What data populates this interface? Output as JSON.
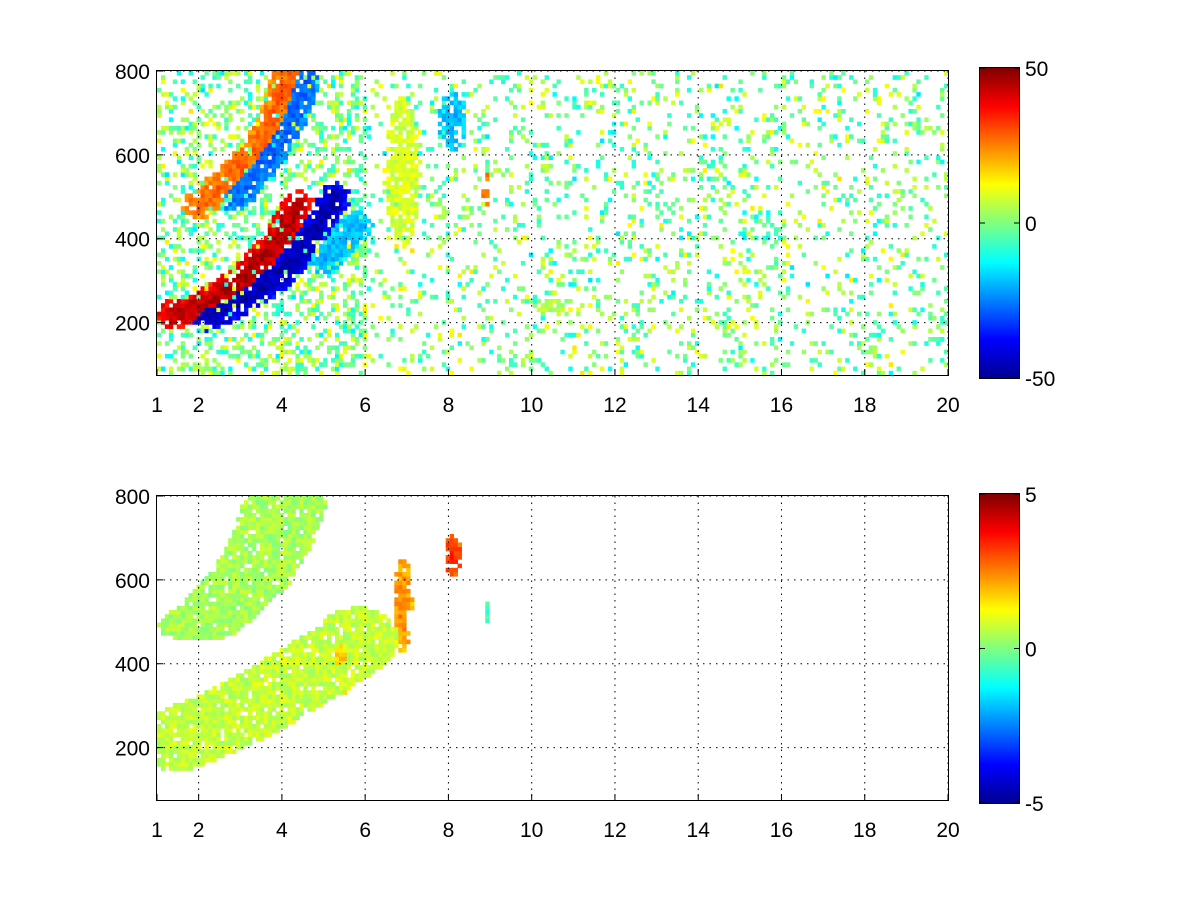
{
  "chart_data": [
    {
      "type": "heatmap",
      "title": "",
      "xlabel": "",
      "ylabel": "",
      "xlim": [
        1,
        20
      ],
      "ylim": [
        75,
        800
      ],
      "xticks": [
        1,
        2,
        4,
        6,
        8,
        10,
        12,
        14,
        16,
        18,
        20
      ],
      "xtick_labels": [
        "1",
        "2",
        "4",
        "6",
        "8",
        "10",
        "12",
        "14",
        "16",
        "18",
        "20"
      ],
      "yticks": [
        200,
        400,
        600,
        800
      ],
      "ytick_labels": [
        "200",
        "400",
        "600",
        "800"
      ],
      "grid": true,
      "colormap": "jet",
      "clim": [
        -50,
        50
      ],
      "colorbar_ticks": [
        50,
        0,
        -50
      ],
      "colorbar_labels": [
        "50",
        "0",
        "-50"
      ],
      "features": [
        {
          "kind": "ridge",
          "value": 45,
          "points": [
            [
              1.4,
              220
            ],
            [
              2,
              240
            ],
            [
              2.5,
              265
            ],
            [
              3,
              300
            ],
            [
              3.5,
              350
            ],
            [
              4,
              410
            ],
            [
              4.4,
              480
            ]
          ]
        },
        {
          "kind": "ridge",
          "value": -45,
          "points": [
            [
              2.2,
              215
            ],
            [
              2.8,
              240
            ],
            [
              3.4,
              275
            ],
            [
              4,
              320
            ],
            [
              4.5,
              380
            ],
            [
              4.9,
              440
            ],
            [
              5.3,
              500
            ]
          ]
        },
        {
          "kind": "ridge",
          "value": 28,
          "points": [
            [
              2,
              480
            ],
            [
              2.6,
              530
            ],
            [
              3.2,
              590
            ],
            [
              3.7,
              660
            ],
            [
              4,
              740
            ],
            [
              4.2,
              800
            ]
          ]
        },
        {
          "kind": "ridge",
          "value": -28,
          "points": [
            [
              2.9,
              500
            ],
            [
              3.4,
              560
            ],
            [
              3.9,
              630
            ],
            [
              4.3,
              700
            ],
            [
              4.6,
              800
            ]
          ]
        },
        {
          "kind": "ridge",
          "value": -20,
          "points": [
            [
              5,
              350
            ],
            [
              5.5,
              400
            ],
            [
              5.8,
              430
            ]
          ]
        },
        {
          "kind": "blob",
          "value": 10,
          "x": 6.9,
          "y": 560,
          "rx": 0.35,
          "ry": 160
        },
        {
          "kind": "blob",
          "value": -20,
          "x": 8.1,
          "y": 680,
          "rx": 0.3,
          "ry": 60
        },
        {
          "kind": "blob",
          "value": 30,
          "x": 8.9,
          "y": 520,
          "rx": 0.06,
          "ry": 40
        },
        {
          "kind": "blob",
          "value": 5,
          "x": 10.4,
          "y": 240,
          "rx": 0.3,
          "ry": 15
        }
      ],
      "noise": {
        "xrange": [
          1,
          20
        ],
        "yrange": [
          75,
          800
        ],
        "value_range": [
          -12,
          12
        ],
        "density": 0.16
      }
    },
    {
      "type": "heatmap",
      "title": "",
      "xlabel": "",
      "ylabel": "",
      "xlim": [
        1,
        20
      ],
      "ylim": [
        75,
        800
      ],
      "xticks": [
        1,
        2,
        4,
        6,
        8,
        10,
        12,
        14,
        16,
        18,
        20
      ],
      "xtick_labels": [
        "1",
        "2",
        "4",
        "6",
        "8",
        "10",
        "12",
        "14",
        "16",
        "18",
        "20"
      ],
      "yticks": [
        200,
        400,
        600,
        800
      ],
      "ytick_labels": [
        "200",
        "400",
        "600",
        "800"
      ],
      "grid": true,
      "colormap": "jet",
      "clim": [
        -5,
        5
      ],
      "colorbar_ticks": [
        5,
        0,
        -5
      ],
      "colorbar_labels": [
        "5",
        "0",
        "-5"
      ],
      "features": [
        {
          "kind": "band",
          "value": 0.7,
          "points": [
            [
              1.5,
              220
            ],
            [
              2.5,
              260
            ],
            [
              3.5,
              310
            ],
            [
              4.5,
              370
            ],
            [
              5.5,
              430
            ],
            [
              5.8,
              460
            ]
          ],
          "halfwidth": 75
        },
        {
          "kind": "band",
          "value": 0.4,
          "points": [
            [
              2,
              490
            ],
            [
              2.6,
              540
            ],
            [
              3.2,
              600
            ],
            [
              3.7,
              680
            ],
            [
              4.1,
              790
            ]
          ],
          "halfwidth": 35
        },
        {
          "kind": "blob",
          "value": 1.8,
          "x": 5.4,
          "y": 420,
          "rx": 0.35,
          "ry": 80
        },
        {
          "kind": "blob",
          "value": 2.5,
          "x": 6.9,
          "y": 540,
          "rx": 0.2,
          "ry": 100
        },
        {
          "kind": "blob",
          "value": 3.5,
          "x": 8.1,
          "y": 660,
          "rx": 0.18,
          "ry": 45
        },
        {
          "kind": "blob",
          "value": -0.8,
          "x": 8.9,
          "y": 520,
          "rx": 0.04,
          "ry": 30
        }
      ]
    }
  ]
}
